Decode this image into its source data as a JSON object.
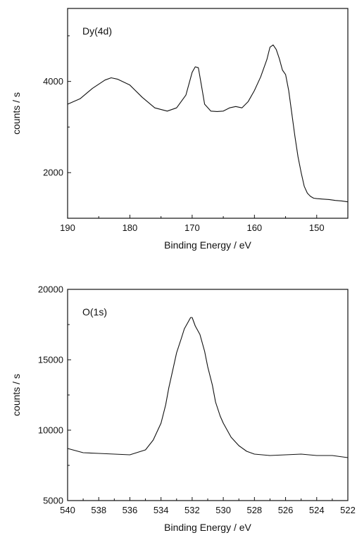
{
  "chart_data": [
    {
      "type": "line",
      "annotation": "Dy(4d)",
      "xlabel": "Binding Energy / eV",
      "ylabel": "counts / s",
      "xlim": [
        190,
        145
      ],
      "x_reversed": true,
      "ylim": [
        1000,
        5600
      ],
      "xticks": [
        190,
        180,
        170,
        160,
        150
      ],
      "yticks": [
        2000,
        4000
      ],
      "grid": false,
      "series": [
        {
          "x": [
            190,
            188,
            186,
            184,
            183,
            182,
            180,
            178,
            176,
            174,
            172.5,
            171,
            170,
            169.5,
            169,
            168.5,
            168,
            167,
            166,
            165,
            164,
            163,
            162,
            161,
            160,
            159,
            158,
            157.5,
            157,
            156.5,
            156,
            155.5,
            155,
            154.5,
            154,
            153.5,
            153,
            152.5,
            152,
            151.5,
            151,
            150.5,
            150,
            149,
            148,
            147,
            146,
            145
          ],
          "y": [
            3500,
            3620,
            3850,
            4030,
            4080,
            4050,
            3920,
            3650,
            3420,
            3350,
            3420,
            3700,
            4200,
            4320,
            4300,
            3900,
            3500,
            3350,
            3340,
            3350,
            3420,
            3450,
            3420,
            3560,
            3800,
            4100,
            4480,
            4750,
            4800,
            4700,
            4500,
            4250,
            4150,
            3800,
            3300,
            2800,
            2350,
            2000,
            1700,
            1550,
            1480,
            1440,
            1430,
            1420,
            1410,
            1390,
            1380,
            1360
          ]
        }
      ]
    },
    {
      "type": "line",
      "annotation": "O(1s)",
      "xlabel": "Binding Energy / eV",
      "ylabel": "counts / s",
      "xlim": [
        540,
        522
      ],
      "x_reversed": true,
      "ylim": [
        5000,
        20000
      ],
      "xticks": [
        540,
        538,
        536,
        534,
        532,
        530,
        528,
        526,
        524,
        522
      ],
      "yticks": [
        5000,
        10000,
        15000,
        20000
      ],
      "grid": false,
      "series": [
        {
          "x": [
            540,
            539,
            538,
            537,
            536,
            535,
            534.5,
            534,
            533.7,
            533.5,
            533.2,
            533,
            532.7,
            532.5,
            532.3,
            532.1,
            532,
            531.8,
            531.5,
            531.2,
            531,
            530.7,
            530.5,
            530.2,
            530,
            529.5,
            529,
            528.5,
            528,
            527,
            526,
            525,
            524,
            523,
            522
          ],
          "y": [
            8700,
            8400,
            8350,
            8300,
            8250,
            8600,
            9300,
            10500,
            11800,
            13000,
            14500,
            15500,
            16500,
            17200,
            17600,
            18000,
            18000,
            17400,
            16800,
            15600,
            14500,
            13200,
            12000,
            11000,
            10500,
            9500,
            8900,
            8500,
            8300,
            8200,
            8250,
            8300,
            8200,
            8200,
            8050
          ]
        }
      ]
    }
  ]
}
